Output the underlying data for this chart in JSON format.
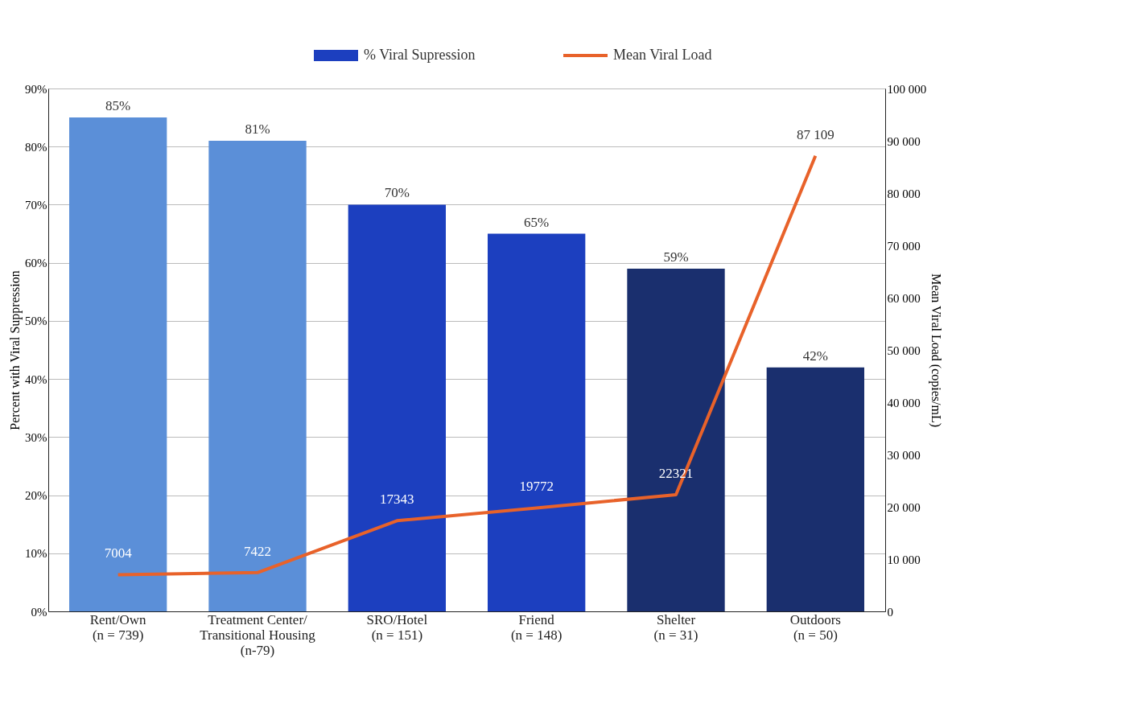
{
  "chart_data": {
    "type": "bar",
    "categories": [
      "Rent/Own\n(n = 739)",
      "Treatment Center/\nTransitional Housing\n(n-79)",
      "SRO/Hotel\n(n = 151)",
      "Friend\n(n = 148)",
      "Shelter\n(n = 31)",
      "Outdoors\n(n = 50)"
    ],
    "series": [
      {
        "name": "% Viral Supression",
        "color": "#1c3fbf",
        "colors": [
          "#5b8fd8",
          "#5b8fd8",
          "#1c3fbf",
          "#1c3fbf",
          "#1a2f6e",
          "#1a2f6e"
        ],
        "values": [
          85,
          81,
          70,
          65,
          59,
          42
        ],
        "value_labels": [
          "85%",
          "81%",
          "70%",
          "65%",
          "59%",
          "42%"
        ]
      },
      {
        "name": "Mean Viral Load",
        "type": "line",
        "axis": "y2",
        "color": "#e8622a",
        "values": [
          7004,
          7422,
          17343,
          19772,
          22321,
          87109
        ],
        "value_labels": [
          "7004",
          "7422",
          "17343",
          "19772",
          "22321",
          "87 109"
        ]
      }
    ],
    "ylabel": "Percent with Viral Suppression",
    "y2label": "Mean Viral Load (copies/mL)",
    "ylim": [
      0,
      90
    ],
    "yticks": [
      {
        "value": 0,
        "label": "0%"
      },
      {
        "value": 10,
        "label": "10%"
      },
      {
        "value": 20,
        "label": "20%"
      },
      {
        "value": 30,
        "label": "30%"
      },
      {
        "value": 40,
        "label": "40%"
      },
      {
        "value": 50,
        "label": "50%"
      },
      {
        "value": 60,
        "label": "60%"
      },
      {
        "value": 70,
        "label": "70%"
      },
      {
        "value": 80,
        "label": "80%"
      },
      {
        "value": 90,
        "label": "90%"
      }
    ],
    "y2lim": [
      0,
      100000
    ],
    "y2ticks": [
      0,
      {
        "value": 10000,
        "label": "10 000"
      },
      {
        "value": 20000,
        "label": "20 000"
      },
      {
        "value": 30000,
        "label": "30 000"
      },
      {
        "value": 40000,
        "label": "40 000"
      },
      {
        "value": 50000,
        "label": "50 000"
      },
      {
        "value": 60000,
        "label": "60 000"
      },
      {
        "value": 70000,
        "label": "70 000"
      },
      {
        "value": 80000,
        "label": "80 000"
      },
      {
        "value": 90000,
        "label": "90 000"
      },
      {
        "value": 100000,
        "label": "100 000"
      }
    ],
    "grid": "y",
    "legend": "top"
  }
}
